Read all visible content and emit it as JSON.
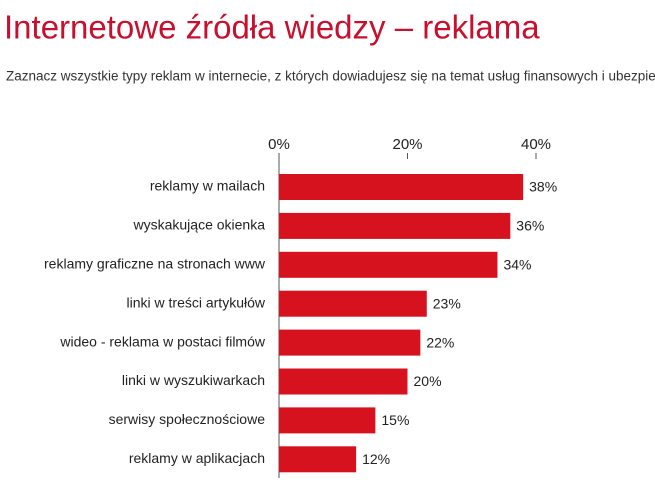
{
  "chart_data": {
    "type": "hbar",
    "title": "Internetowe źródła wiedzy – reklama",
    "subtitle": "Zaznacz wszystkie typy reklam w internecie, z których dowiadujesz się na temat usług finansowych i ubezpieczeń.",
    "categories": [
      "reklamy w mailach",
      "wyskakujące okienka",
      "reklamy graficzne na stronach www",
      "linki w treści artykułów",
      "wideo - reklama w postaci filmów",
      "linki w wyszukiwarkach",
      "serwisy społecznościowe",
      "reklamy w aplikacjach"
    ],
    "values": [
      38,
      36,
      34,
      23,
      22,
      20,
      15,
      12
    ],
    "value_labels": [
      "38%",
      "36%",
      "34%",
      "23%",
      "22%",
      "20%",
      "15%",
      "12%"
    ],
    "color": "#d7121f",
    "xlim": [
      0,
      40
    ],
    "xticks": [
      {
        "value": 0,
        "label": "0%"
      },
      {
        "value": 20,
        "label": "20%"
      },
      {
        "value": 40,
        "label": "40%"
      }
    ]
  }
}
